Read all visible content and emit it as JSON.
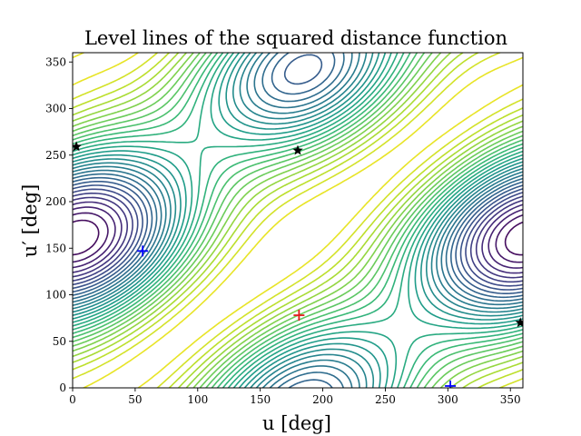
{
  "chart_data": {
    "type": "contour",
    "title": "Level lines of the squared distance function",
    "xlabel": "u [deg]",
    "ylabel": "u′ [deg]",
    "xlim": [
      0,
      360
    ],
    "ylim": [
      0,
      360
    ],
    "x_ticks": [
      0,
      50,
      100,
      150,
      200,
      250,
      300,
      350
    ],
    "y_ticks": [
      0,
      50,
      100,
      150,
      200,
      250,
      300,
      350
    ],
    "colormap": "viridis",
    "grid": false,
    "markers": {
      "minimum": {
        "x": 181,
        "y": 78,
        "symbol": "+",
        "color": "#e31a1c"
      },
      "saddles": [
        {
          "x": 56,
          "y": 147,
          "symbol": "+",
          "color": "#0000ff"
        },
        {
          "x": 302,
          "y": 2,
          "symbol": "+",
          "color": "#0000ff"
        }
      ],
      "critical_points": [
        {
          "x": 3,
          "y": 259,
          "symbol": "★",
          "color": "#000000"
        },
        {
          "x": 180,
          "y": 255,
          "symbol": "★",
          "color": "#000000"
        },
        {
          "x": 358,
          "y": 70,
          "symbol": "★",
          "color": "#000000"
        }
      ]
    }
  }
}
